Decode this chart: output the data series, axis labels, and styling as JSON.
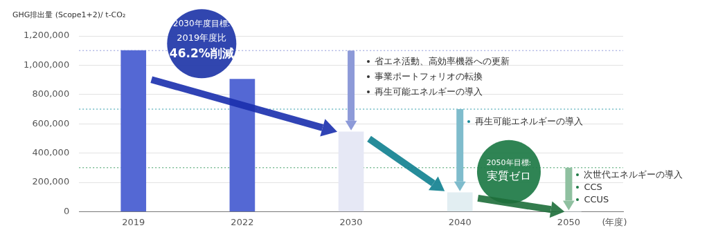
{
  "chart_data": {
    "type": "bar",
    "ylabel": "GHG排出量 (Scope1+2)/ t-CO₂",
    "xlabel": "(年度)",
    "categories": [
      "2019",
      "2022",
      "2030",
      "2040",
      "2050"
    ],
    "values": [
      1100000,
      905000,
      545000,
      130000,
      0
    ],
    "colors": [
      "#5468d4",
      "#5468d4",
      "#e6e8f5",
      "#e2eef2",
      "#e2eef2"
    ],
    "ylim": [
      0,
      1200000
    ],
    "yticks": [
      {
        "value": 0,
        "label": "0"
      },
      {
        "value": 200000,
        "label": "200,000"
      },
      {
        "value": 400000,
        "label": "400,000"
      },
      {
        "value": 600000,
        "label": "600,000"
      },
      {
        "value": 800000,
        "label": "800,000"
      },
      {
        "value": 1000000,
        "label": "1,000,000"
      },
      {
        "value": 1200000,
        "label": "1,200,000"
      }
    ],
    "grid": "y",
    "legend": false,
    "ref_lines": [
      {
        "axis": "y",
        "value": 1100000,
        "color": "#8a95d8",
        "line_style": "dotted"
      },
      {
        "axis": "y",
        "value": 700000,
        "color": "#2a9aa8",
        "line_style": "dotted"
      },
      {
        "axis": "y",
        "value": 300000,
        "color": "#3a9a60",
        "line_style": "dotted"
      }
    ],
    "annotations": [
      "2030年度目標:",
      "2019年度比",
      "46.2%削減",
      "省エネ活動、高効率機器への更新",
      "事業ポートフォリオの転換",
      "再生可能エネルギーの導入",
      "再生可能エネルギーの導入",
      "2050年目標:",
      "実質ゼロ",
      "次世代エネルギーの導入",
      "CCS",
      "CCUS"
    ]
  }
}
